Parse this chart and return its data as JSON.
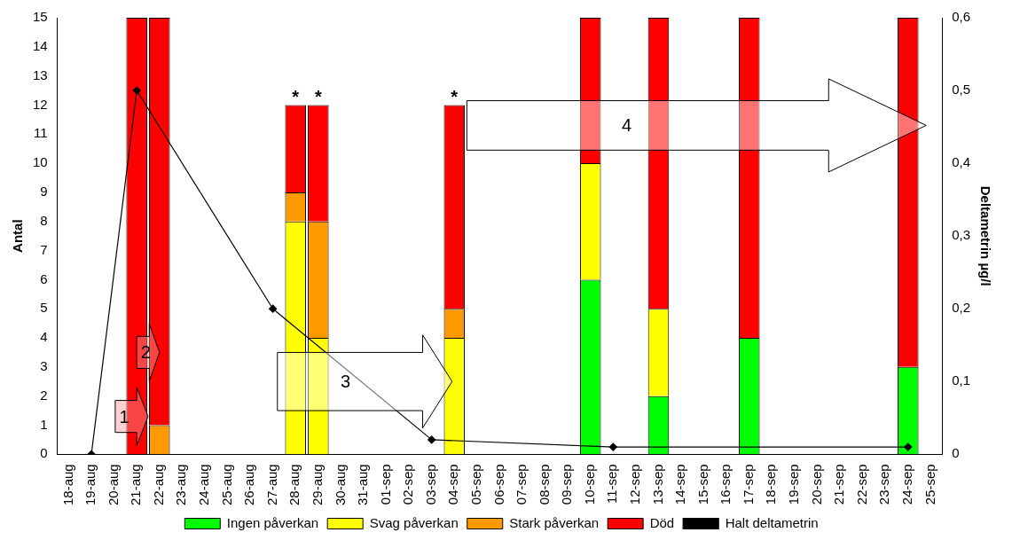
{
  "chart_data": {
    "type": "bar",
    "stacked": true,
    "categories": [
      "18-aug",
      "19-aug",
      "20-aug",
      "21-aug",
      "22-aug",
      "23-aug",
      "24-aug",
      "25-aug",
      "26-aug",
      "27-aug",
      "28-aug",
      "29-aug",
      "30-aug",
      "31-aug",
      "01-sep",
      "02-sep",
      "03-sep",
      "04-sep",
      "05-sep",
      "06-sep",
      "07-sep",
      "08-sep",
      "09-sep",
      "10-sep",
      "11-sep",
      "12-sep",
      "13-sep",
      "14-sep",
      "15-sep",
      "16-sep",
      "17-sep",
      "18-sep",
      "19-sep",
      "20-sep",
      "21-sep",
      "22-sep",
      "23-sep",
      "24-sep",
      "25-sep"
    ],
    "series": [
      {
        "name": "Ingen påverkan",
        "color": "#00ff00",
        "values": [
          null,
          null,
          null,
          null,
          null,
          null,
          null,
          null,
          null,
          null,
          null,
          null,
          null,
          null,
          null,
          null,
          null,
          null,
          null,
          null,
          null,
          null,
          null,
          6,
          null,
          null,
          2,
          null,
          null,
          null,
          4,
          null,
          null,
          null,
          null,
          null,
          null,
          3,
          null
        ]
      },
      {
        "name": "Svag påverkan",
        "color": "#ffff00",
        "values": [
          null,
          null,
          null,
          null,
          null,
          null,
          null,
          null,
          null,
          null,
          8,
          4,
          null,
          null,
          null,
          null,
          null,
          4,
          null,
          null,
          null,
          null,
          null,
          4,
          null,
          null,
          3,
          null,
          null,
          null,
          null,
          null,
          null,
          null,
          null,
          null,
          null,
          null,
          null
        ]
      },
      {
        "name": "Stark påverkan",
        "color": "#ff9900",
        "values": [
          null,
          null,
          null,
          null,
          1,
          null,
          null,
          null,
          null,
          null,
          1,
          4,
          null,
          null,
          null,
          null,
          null,
          1,
          null,
          null,
          null,
          null,
          null,
          null,
          null,
          null,
          null,
          null,
          null,
          null,
          null,
          null,
          null,
          null,
          null,
          null,
          null,
          null,
          null
        ]
      },
      {
        "name": "Död",
        "color": "#ff0000",
        "values": [
          null,
          null,
          null,
          15,
          14,
          null,
          null,
          null,
          null,
          null,
          3,
          4,
          null,
          null,
          null,
          null,
          null,
          7,
          null,
          null,
          null,
          null,
          null,
          5,
          null,
          null,
          10,
          null,
          null,
          null,
          11,
          null,
          null,
          null,
          null,
          null,
          null,
          12,
          null
        ]
      },
      {
        "name": "Halt deltametrin",
        "type": "line",
        "axis": "y2",
        "color": "#000000",
        "marker": "diamond",
        "line_style": "solid",
        "values": [
          null,
          0,
          null,
          0.5,
          null,
          null,
          null,
          null,
          null,
          0.2,
          null,
          null,
          null,
          null,
          null,
          null,
          0.02,
          null,
          null,
          null,
          null,
          null,
          null,
          null,
          0.01,
          null,
          null,
          null,
          null,
          null,
          null,
          null,
          null,
          null,
          null,
          null,
          null,
          0.01,
          null
        ]
      }
    ],
    "ylabel": "Antal",
    "y2label": "Deltametrin µg/l",
    "ylim": [
      0,
      15
    ],
    "yticks": [
      0,
      1,
      2,
      3,
      4,
      5,
      6,
      7,
      8,
      9,
      10,
      11,
      12,
      13,
      14,
      15
    ],
    "y2lim": [
      0,
      0.6
    ],
    "y2ticks": [
      0,
      {
        "value": 0.1,
        "label": "0,1"
      },
      {
        "value": 0.2,
        "label": "0,2"
      },
      {
        "value": 0.3,
        "label": "0,3"
      },
      {
        "value": 0.4,
        "label": "0,4"
      },
      {
        "value": 0.5,
        "label": "0,5"
      },
      {
        "value": 0.6,
        "label": "0,6"
      }
    ],
    "grid": false,
    "legend": "bottom",
    "annotations": [
      {
        "text": "*",
        "x": "28-aug",
        "y": 12
      },
      {
        "text": "*",
        "x": "29-aug",
        "y": 12
      },
      {
        "text": "*",
        "x": "04-sep",
        "y": 12
      },
      "1",
      "2",
      "3",
      "4"
    ]
  }
}
